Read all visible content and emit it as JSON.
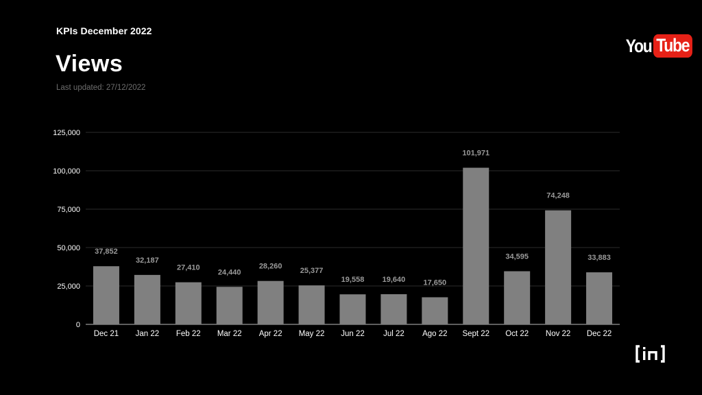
{
  "header": {
    "kicker": "KPIs December 2022",
    "title": "Views",
    "updated": "Last updated: 27/12/2022"
  },
  "logos": {
    "youtube_you": "You",
    "youtube_tube": "Tube",
    "brand_mark": "(in)"
  },
  "colors": {
    "background": "#000000",
    "bar": "#808080",
    "grid": "#3a3a3a",
    "youtube_red": "#e62117",
    "data_label": "#9a9a9a"
  },
  "chart_data": {
    "type": "bar",
    "categories": [
      "Dec 21",
      "Jan 22",
      "Feb 22",
      "Mar 22",
      "Apr 22",
      "May 22",
      "Jun 22",
      "Jul 22",
      "Ago 22",
      "Sept 22",
      "Oct 22",
      "Nov 22",
      "Dec 22"
    ],
    "values": [
      37852,
      32187,
      27410,
      24440,
      28260,
      25377,
      19558,
      19640,
      17650,
      101971,
      34595,
      74248,
      33883
    ],
    "data_labels": [
      "37,852",
      "32,187",
      "27,410",
      "24,440",
      "28,260",
      "25,377",
      "19,558",
      "19,640",
      "17,650",
      "101,971",
      "34,595",
      "74,248",
      "33,883"
    ],
    "yticks": [
      0,
      25000,
      50000,
      75000,
      100000,
      125000
    ],
    "ytick_labels": [
      "0",
      "25,000",
      "50,000",
      "75,000",
      "100,000",
      "125,000"
    ],
    "ylim": [
      0,
      125000
    ],
    "grid": true,
    "legend": "none"
  }
}
